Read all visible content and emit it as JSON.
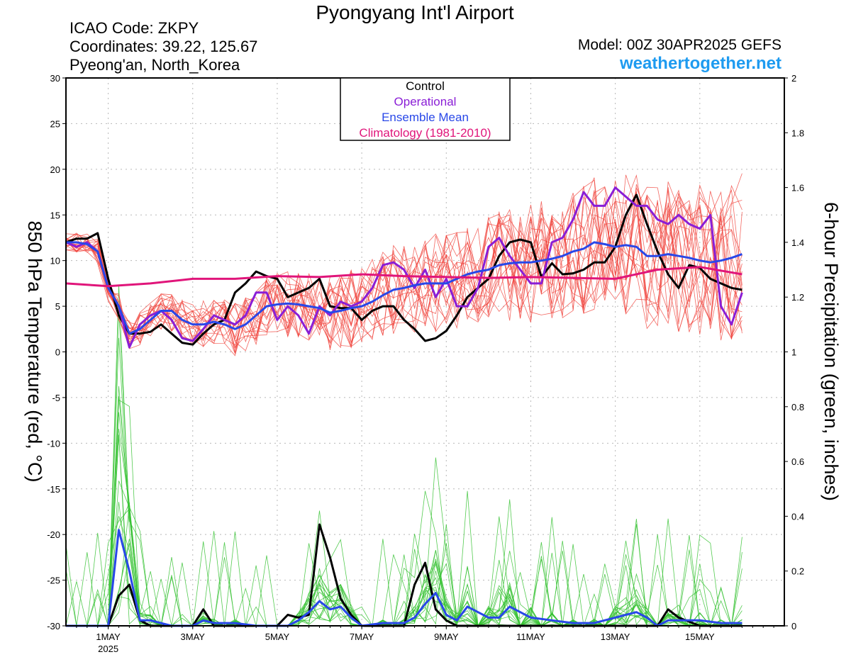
{
  "header": {
    "title": "Pyongyang Int'l Airport",
    "icao": "ICAO Code: ZKPY",
    "coordinates": "Coordinates: 39.22, 125.67",
    "location": "Pyeong'an, North_Korea",
    "model": "Model: 00Z 30APR2025 GEFS",
    "site": "weathertogether.net"
  },
  "chart_data": {
    "type": "line",
    "left_ylabel": "850 hPa Temperature (red, °C)",
    "right_ylabel": "6-hour Precipitation (green, inches)",
    "left_ylim": [
      -30,
      30
    ],
    "left_yticks": [
      30,
      25,
      20,
      15,
      10,
      5,
      0,
      -5,
      -10,
      -15,
      -20,
      -25,
      -30
    ],
    "right_ylim": [
      0,
      2
    ],
    "right_yticks": [
      "2",
      "1.8",
      "1.6",
      "1.4",
      "1.2",
      "1",
      "0.8",
      "0.6",
      "0.4",
      "0.2",
      "0"
    ],
    "x_unit": "days since 00Z 30APR2025",
    "x_range": [
      0,
      17
    ],
    "x_ticks": [
      {
        "day": 1,
        "label": "1MAY",
        "sub": "2025"
      },
      {
        "day": 3,
        "label": "3MAY"
      },
      {
        "day": 5,
        "label": "5MAY"
      },
      {
        "day": 7,
        "label": "7MAY"
      },
      {
        "day": 9,
        "label": "9MAY"
      },
      {
        "day": 11,
        "label": "11MAY"
      },
      {
        "day": 13,
        "label": "13MAY"
      },
      {
        "day": 15,
        "label": "15MAY"
      }
    ],
    "legend": [
      {
        "label": "Control",
        "color": "#000000"
      },
      {
        "label": "Operational",
        "color": "#8a1ed6"
      },
      {
        "label": "Ensemble Mean",
        "color": "#2847e8"
      },
      {
        "label": "Climatology (1981-2010)",
        "color": "#e0157a"
      }
    ],
    "legend_position": "top-center",
    "grid": true,
    "colors": {
      "control": "#000000",
      "operational": "#8a1ed6",
      "mean": "#2847e8",
      "climatology": "#e0157a",
      "members_temp": "#f0443c",
      "members_precip": "#36c232"
    },
    "series": [
      {
        "name": "Control",
        "axis": "temperature",
        "x": [
          0,
          0.25,
          0.5,
          0.75,
          1,
          1.25,
          1.5,
          1.75,
          2,
          2.25,
          2.5,
          2.75,
          3,
          3.25,
          3.5,
          3.75,
          4,
          4.25,
          4.5,
          4.75,
          5,
          5.25,
          5.5,
          5.75,
          6,
          6.25,
          6.5,
          6.75,
          7,
          7.25,
          7.5,
          7.75,
          8,
          8.25,
          8.5,
          8.75,
          9,
          9.25,
          9.5,
          9.75,
          10,
          10.25,
          10.5,
          10.75,
          11,
          11.25,
          11.5,
          11.75,
          12,
          12.25,
          12.5,
          12.75,
          13,
          13.25,
          13.5,
          13.75,
          14,
          14.25,
          14.5,
          14.75,
          15,
          15.25,
          15.5,
          15.75,
          16
        ],
        "y": [
          12,
          12.4,
          12.4,
          13,
          8,
          4,
          2,
          2,
          2.2,
          3,
          2,
          1,
          0.8,
          2,
          3,
          3.5,
          6.5,
          7.5,
          8.8,
          8.3,
          8,
          6,
          6.5,
          7,
          8,
          5,
          4.8,
          4.8,
          3.5,
          4.5,
          5,
          5,
          3.5,
          2.5,
          1.2,
          1.5,
          2.3,
          4,
          6,
          7,
          8,
          10.5,
          12,
          12.3,
          12,
          8.2,
          9.7,
          8.5,
          8.6,
          9,
          9.8,
          9.8,
          11.5,
          15,
          17.2,
          14,
          11,
          8.5,
          7,
          9.5,
          9.2,
          8,
          7.5,
          7,
          6.8
        ]
      },
      {
        "name": "Operational",
        "axis": "temperature",
        "x": [
          0,
          0.25,
          0.5,
          0.75,
          1,
          1.25,
          1.5,
          1.75,
          2,
          2.25,
          2.5,
          2.75,
          3,
          3.25,
          3.5,
          3.75,
          4,
          4.25,
          4.5,
          4.75,
          5,
          5.25,
          5.5,
          5.75,
          6,
          6.25,
          6.5,
          6.75,
          7,
          7.25,
          7.5,
          7.75,
          8,
          8.25,
          8.5,
          8.75,
          9,
          9.25,
          9.5,
          9.75,
          10,
          10.25,
          10.5,
          10.75,
          11,
          11.25,
          11.5,
          11.75,
          12,
          12.25,
          12.5,
          12.75,
          13,
          13.25,
          13.5,
          13.75,
          14,
          14.25,
          14.5,
          14.75,
          15,
          15.25,
          15.5,
          15.75,
          16
        ],
        "y": [
          12,
          11.5,
          12,
          11,
          7,
          5,
          0.5,
          3,
          4,
          4.5,
          3.5,
          1.5,
          1.2,
          2.5,
          4,
          3.5,
          3,
          4,
          6.5,
          6.5,
          3.5,
          5,
          4,
          2,
          5,
          4,
          5.5,
          5,
          5.5,
          7,
          9.5,
          9.8,
          9,
          7,
          9,
          6,
          8,
          5,
          5,
          7,
          11.5,
          12.5,
          10.5,
          9,
          7.5,
          7.5,
          12,
          12.5,
          14.5,
          17.5,
          16,
          16,
          18,
          17,
          16,
          16,
          14.5,
          14,
          15,
          14,
          13.5,
          15,
          5,
          3,
          6.5
        ]
      },
      {
        "name": "Ensemble Mean",
        "axis": "temperature",
        "x": [
          0,
          0.25,
          0.5,
          0.75,
          1,
          1.25,
          1.5,
          1.75,
          2,
          2.25,
          2.5,
          2.75,
          3,
          3.25,
          3.5,
          3.75,
          4,
          4.25,
          4.5,
          4.75,
          5,
          5.25,
          5.5,
          5.75,
          6,
          6.25,
          6.5,
          6.75,
          7,
          7.25,
          7.5,
          7.75,
          8,
          8.25,
          8.5,
          8.75,
          9,
          9.25,
          9.5,
          9.75,
          10,
          10.25,
          10.5,
          10.75,
          11,
          11.25,
          11.5,
          11.75,
          12,
          12.25,
          12.5,
          12.75,
          13,
          13.25,
          13.5,
          13.75,
          14,
          14.25,
          14.5,
          14.75,
          15,
          15.25,
          15.5,
          15.75,
          16
        ],
        "y": [
          12,
          12,
          11.8,
          11,
          7,
          5,
          2,
          2.5,
          3.5,
          4.5,
          4.5,
          3.5,
          3,
          3,
          3.3,
          3,
          2.5,
          3,
          4,
          5,
          5.2,
          5.3,
          5.2,
          5,
          4.8,
          4.3,
          4.5,
          4.8,
          5,
          5.5,
          6.2,
          6.8,
          7,
          7.3,
          7.5,
          7.5,
          7.5,
          8,
          8.5,
          8.8,
          9,
          9.5,
          9.7,
          9.8,
          9.8,
          10,
          10.2,
          10.5,
          11,
          11.3,
          12,
          11.8,
          11.5,
          11.7,
          11.5,
          10.5,
          10.5,
          10.7,
          10.5,
          10.3,
          10,
          9.8,
          10,
          10.3,
          10.7
        ]
      },
      {
        "name": "Climatology (1981-2010)",
        "axis": "temperature",
        "x": [
          0,
          1,
          2,
          3,
          4,
          5,
          6,
          7,
          8,
          9,
          10,
          11,
          12,
          13,
          14,
          15,
          16
        ],
        "y": [
          7.5,
          7.2,
          7.5,
          8,
          8,
          8.3,
          8.2,
          8.5,
          8.3,
          8.2,
          8.1,
          8.2,
          8.1,
          8.0,
          9.0,
          9.3,
          8.5
        ]
      },
      {
        "name": "Control",
        "axis": "precipitation",
        "x": [
          0,
          0.5,
          1,
          1.25,
          1.5,
          1.75,
          2,
          2.5,
          3,
          3.25,
          3.5,
          4,
          4.5,
          5,
          5.25,
          5.5,
          5.75,
          6,
          6.25,
          6.5,
          6.75,
          7,
          7.5,
          8,
          8.25,
          8.5,
          8.75,
          9,
          9.25,
          9.5,
          10,
          11,
          12,
          13,
          13.5,
          14,
          14.25,
          14.5,
          15,
          15.5,
          16
        ],
        "y": [
          0,
          0,
          0,
          0.11,
          0.15,
          0.02,
          0,
          0,
          0,
          0.06,
          0,
          0,
          0,
          0,
          0.04,
          0.03,
          0.04,
          0.37,
          0.25,
          0.1,
          0.04,
          0,
          0,
          0,
          0.15,
          0.23,
          0.06,
          0.02,
          0,
          0,
          0,
          0,
          0,
          0,
          0,
          0,
          0.06,
          0.03,
          0,
          0,
          0
        ]
      },
      {
        "name": "Ensemble Mean",
        "axis": "precipitation",
        "x": [
          0,
          0.5,
          1,
          1.25,
          1.5,
          1.75,
          2,
          2.5,
          3,
          3.25,
          3.5,
          4,
          4.5,
          5,
          5.25,
          5.5,
          5.75,
          6,
          6.25,
          6.5,
          6.75,
          7,
          7.5,
          8,
          8.25,
          8.5,
          8.75,
          9,
          9.25,
          9.5,
          10,
          10.25,
          10.5,
          11,
          11.5,
          12,
          12.5,
          13,
          13.25,
          13.5,
          13.75,
          14,
          14.25,
          14.5,
          15,
          15.5,
          16
        ],
        "y": [
          0,
          0,
          0,
          0.35,
          0.2,
          0.02,
          0.02,
          0,
          0,
          0.02,
          0.01,
          0.01,
          0,
          0,
          0,
          0.02,
          0.05,
          0.09,
          0.06,
          0.07,
          0.03,
          0,
          0.01,
          0.01,
          0.03,
          0.08,
          0.12,
          0.04,
          0.02,
          0.07,
          0.03,
          0.03,
          0.07,
          0.03,
          0.02,
          0.01,
          0.01,
          0.03,
          0.04,
          0.05,
          0.03,
          0,
          0.02,
          0.02,
          0.02,
          0.01,
          0.01
        ]
      }
    ],
    "member_count": 20
  }
}
